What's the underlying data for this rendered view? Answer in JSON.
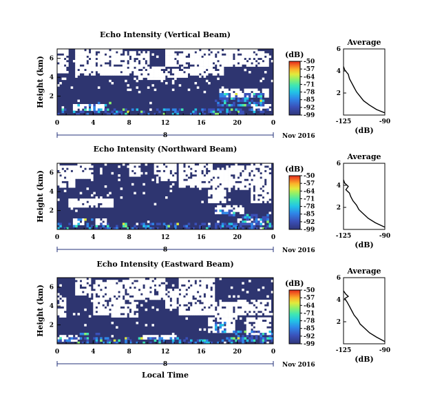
{
  "chart_data": [
    {
      "type": "heatmap",
      "title": "Echo Intensity (Vertical Beam)",
      "ylabel": "Height (km)",
      "xlabel": "",
      "x_ticks": [
        "0",
        "4",
        "8",
        "12",
        "16",
        "20",
        "0"
      ],
      "y_ticks": [
        "6",
        "4",
        "2"
      ],
      "day_label": "8",
      "date_label": "Nov 2016",
      "colorbar": {
        "unit": "(dB)",
        "ticks": [
          "-50",
          "-57",
          "-64",
          "-71",
          "-78",
          "-85",
          "-92",
          "-99"
        ],
        "range": [
          -99,
          -50
        ]
      },
      "average": {
        "title": "Average",
        "xlabel": "(dB)",
        "x_ticks": [
          "-125",
          "-90"
        ],
        "y_ticks": [
          "6",
          "4",
          "2"
        ],
        "xlim": [
          -125,
          -90
        ],
        "ylim": [
          0,
          6
        ],
        "profile": [
          [
            -89,
            0.2
          ],
          [
            -97,
            0.5
          ],
          [
            -103,
            0.9
          ],
          [
            -108,
            1.3
          ],
          [
            -111,
            1.7
          ],
          [
            -114,
            2.1
          ],
          [
            -116,
            2.5
          ],
          [
            -118,
            2.9
          ],
          [
            -120,
            3.3
          ],
          [
            -121,
            3.7
          ],
          [
            -124,
            4.1
          ],
          [
            -126,
            4.4
          ]
        ]
      }
    },
    {
      "type": "heatmap",
      "title": "Echo Intensity (Northward Beam)",
      "ylabel": "Height (km)",
      "xlabel": "",
      "x_ticks": [
        "0",
        "4",
        "8",
        "12",
        "16",
        "20",
        "0"
      ],
      "y_ticks": [
        "6",
        "4",
        "2"
      ],
      "day_label": "8",
      "date_label": "Nov 2016",
      "colorbar": {
        "unit": "(dB)",
        "ticks": [
          "-50",
          "-57",
          "-64",
          "-71",
          "-78",
          "-85",
          "-92",
          "-99"
        ],
        "range": [
          -99,
          -50
        ]
      },
      "average": {
        "title": "Average",
        "xlabel": "(dB)",
        "x_ticks": [
          "-125",
          "-90"
        ],
        "y_ticks": [
          "6",
          "4",
          "2"
        ],
        "xlim": [
          -125,
          -90
        ],
        "ylim": [
          0,
          6
        ],
        "profile": [
          [
            -90,
            0.2
          ],
          [
            -98,
            0.6
          ],
          [
            -104,
            1.0
          ],
          [
            -108,
            1.4
          ],
          [
            -112,
            1.8
          ],
          [
            -114,
            2.2
          ],
          [
            -117,
            2.6
          ],
          [
            -119,
            3.0
          ],
          [
            -120,
            3.3
          ],
          [
            -123,
            3.6
          ],
          [
            -121,
            3.9
          ],
          [
            -124,
            4.2
          ],
          [
            -126,
            4.5
          ]
        ]
      }
    },
    {
      "type": "heatmap",
      "title": "Echo Intensity (Eastward Beam)",
      "ylabel": "Height (km)",
      "xlabel": "Local Time",
      "x_ticks": [
        "0",
        "4",
        "8",
        "12",
        "16",
        "20",
        "0"
      ],
      "y_ticks": [
        "6",
        "4",
        "2"
      ],
      "day_label": "8",
      "date_label": "Nov 2016",
      "colorbar": {
        "unit": "(dB)",
        "ticks": [
          "-50",
          "-57",
          "-64",
          "-71",
          "-78",
          "-85",
          "-92",
          "-99"
        ],
        "range": [
          -99,
          -50
        ]
      },
      "average": {
        "title": "Average",
        "xlabel": "(dB)",
        "x_ticks": [
          "-125",
          "-90"
        ],
        "y_ticks": [
          "6",
          "4",
          "2"
        ],
        "xlim": [
          -125,
          -90
        ],
        "ylim": [
          0,
          6
        ],
        "profile": [
          [
            -90,
            0.2
          ],
          [
            -97,
            0.6
          ],
          [
            -103,
            1.0
          ],
          [
            -107,
            1.4
          ],
          [
            -111,
            1.8
          ],
          [
            -113,
            2.2
          ],
          [
            -116,
            2.6
          ],
          [
            -118,
            3.0
          ],
          [
            -120,
            3.4
          ],
          [
            -122,
            3.8
          ],
          [
            -124,
            4.1
          ],
          [
            -121,
            4.3
          ],
          [
            -123,
            4.5
          ],
          [
            -125,
            4.8
          ]
        ]
      }
    }
  ],
  "colors": {
    "background_fill": "#2e3570",
    "colormap": [
      "#30367a",
      "#3a50b8",
      "#2f86e8",
      "#22c4e6",
      "#3ee6b4",
      "#8cf06c",
      "#e2ea3c",
      "#fbb42a",
      "#f46a22",
      "#e22a1c"
    ]
  }
}
